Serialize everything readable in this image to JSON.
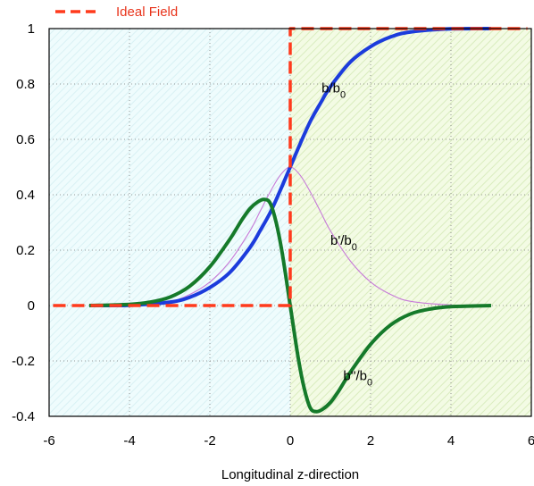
{
  "chart_data": {
    "type": "line",
    "title": "",
    "xlabel": "Longitudinal z-direction",
    "ylabel": "",
    "xlim": [
      -6,
      6
    ],
    "ylim": [
      -0.4,
      1
    ],
    "xticks": [
      -6,
      -4,
      -2,
      0,
      2,
      4,
      6
    ],
    "yticks": [
      -0.4,
      -0.2,
      0,
      0.2,
      0.4,
      0.6,
      0.8,
      1
    ],
    "grid": true,
    "legend": {
      "placement": "top-left",
      "entries": [
        "Ideal Field"
      ]
    },
    "regions": [
      {
        "x_range": [
          -6,
          0
        ],
        "color": "#effcfd",
        "hatch": "#d9f1f4"
      },
      {
        "x_range": [
          0,
          6
        ],
        "color": "#f3fbe4",
        "hatch": "#d9ecbe"
      }
    ],
    "series": [
      {
        "name": "Ideal Field",
        "color": "#ff3a1c",
        "style": "dashed",
        "x": [
          -5.9,
          0,
          0,
          5.9
        ],
        "y": [
          0,
          0,
          1,
          1
        ]
      },
      {
        "name": "b/b0",
        "color": "#1c3cdc",
        "style": "solid-thick",
        "x": [
          -5,
          -4,
          -3,
          -2.5,
          -2,
          -1.5,
          -1,
          -0.75,
          -0.5,
          -0.25,
          0,
          0.25,
          0.5,
          0.75,
          1,
          1.5,
          2,
          2.5,
          3,
          4,
          5
        ],
        "y": [
          0.0,
          0.001,
          0.012,
          0.03,
          0.065,
          0.12,
          0.21,
          0.27,
          0.335,
          0.415,
          0.5,
          0.585,
          0.665,
          0.73,
          0.79,
          0.88,
          0.935,
          0.97,
          0.988,
          0.999,
          1.0
        ]
      },
      {
        "name": "b'/b0",
        "color": "#c77ad8",
        "style": "solid-thin",
        "x": [
          -5,
          -4,
          -3,
          -2.5,
          -2,
          -1.5,
          -1,
          -0.75,
          -0.5,
          -0.25,
          0,
          0.25,
          0.5,
          0.75,
          1,
          1.5,
          2,
          2.5,
          3,
          4,
          5
        ],
        "y": [
          0.0,
          0.002,
          0.015,
          0.04,
          0.085,
          0.16,
          0.27,
          0.34,
          0.41,
          0.47,
          0.5,
          0.47,
          0.41,
          0.34,
          0.27,
          0.16,
          0.085,
          0.04,
          0.015,
          0.002,
          0.0
        ]
      },
      {
        "name": "b''/b0",
        "color": "#157a2a",
        "style": "solid-thick",
        "x": [
          -5,
          -4,
          -3.5,
          -3,
          -2.5,
          -2,
          -1.5,
          -1.2,
          -1,
          -0.8,
          -0.65,
          -0.5,
          -0.35,
          -0.2,
          0,
          0.2,
          0.35,
          0.5,
          0.65,
          0.8,
          1,
          1.2,
          1.5,
          2,
          2.5,
          3,
          3.5,
          4,
          5
        ],
        "y": [
          0.0,
          0.004,
          0.012,
          0.03,
          0.07,
          0.14,
          0.24,
          0.31,
          0.35,
          0.375,
          0.383,
          0.37,
          0.3,
          0.19,
          0.0,
          -0.19,
          -0.3,
          -0.37,
          -0.383,
          -0.375,
          -0.35,
          -0.31,
          -0.24,
          -0.14,
          -0.07,
          -0.03,
          -0.012,
          -0.004,
          0.0
        ]
      }
    ],
    "annotations": [
      {
        "main": "b/b",
        "sub": "0",
        "x": 0.78,
        "y": 0.77
      },
      {
        "main": "b'/b",
        "sub": "0",
        "x": 1.0,
        "y": 0.22
      },
      {
        "main": "b''/b",
        "sub": "0",
        "x": 1.32,
        "y": -0.27
      }
    ]
  }
}
